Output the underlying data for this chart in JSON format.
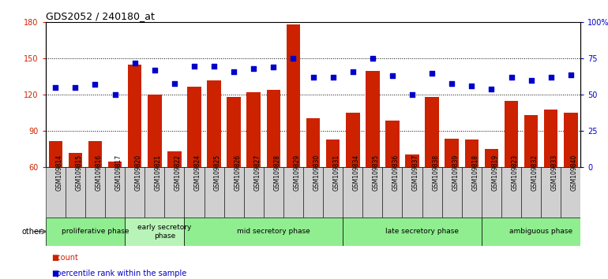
{
  "title": "GDS2052 / 240180_at",
  "samples": [
    "GSM109814",
    "GSM109815",
    "GSM109816",
    "GSM109817",
    "GSM109820",
    "GSM109821",
    "GSM109822",
    "GSM109824",
    "GSM109825",
    "GSM109826",
    "GSM109827",
    "GSM109828",
    "GSM109829",
    "GSM109830",
    "GSM109831",
    "GSM109834",
    "GSM109835",
    "GSM109836",
    "GSM109837",
    "GSM109838",
    "GSM109839",
    "GSM109818",
    "GSM109819",
    "GSM109823",
    "GSM109832",
    "GSM109833",
    "GSM109840"
  ],
  "counts": [
    82,
    72,
    82,
    65,
    145,
    120,
    73,
    127,
    132,
    118,
    122,
    124,
    178,
    101,
    83,
    105,
    140,
    99,
    71,
    118,
    84,
    83,
    75,
    115,
    103,
    108,
    105
  ],
  "percentiles": [
    55,
    55,
    57,
    50,
    72,
    67,
    58,
    70,
    70,
    66,
    68,
    69,
    75,
    62,
    62,
    66,
    75,
    63,
    50,
    65,
    58,
    56,
    54,
    62,
    60,
    62,
    64
  ],
  "bar_color": "#cc2200",
  "dot_color": "#0000cc",
  "ylim_left": [
    60,
    180
  ],
  "ylim_right": [
    0,
    100
  ],
  "yticks_left": [
    60,
    90,
    120,
    150,
    180
  ],
  "yticks_right": [
    0,
    25,
    50,
    75,
    100
  ],
  "yticklabels_right": [
    "0",
    "25",
    "50",
    "75",
    "100%"
  ],
  "phases": [
    {
      "label": "proliferative phase",
      "start": 0,
      "end": 4,
      "color": "#90ee90"
    },
    {
      "label": "early secretory\nphase",
      "start": 4,
      "end": 7,
      "color": "#b8f4b8"
    },
    {
      "label": "mid secretory phase",
      "start": 7,
      "end": 15,
      "color": "#90ee90"
    },
    {
      "label": "late secretory phase",
      "start": 15,
      "end": 22,
      "color": "#90ee90"
    },
    {
      "label": "ambiguous phase",
      "start": 22,
      "end": 27,
      "color": "#90ee90"
    }
  ],
  "legend_count_label": "count",
  "legend_pct_label": "percentile rank within the sample",
  "other_label": "other",
  "background_color": "#ffffff",
  "xticklabel_bg": "#d0d0d0"
}
